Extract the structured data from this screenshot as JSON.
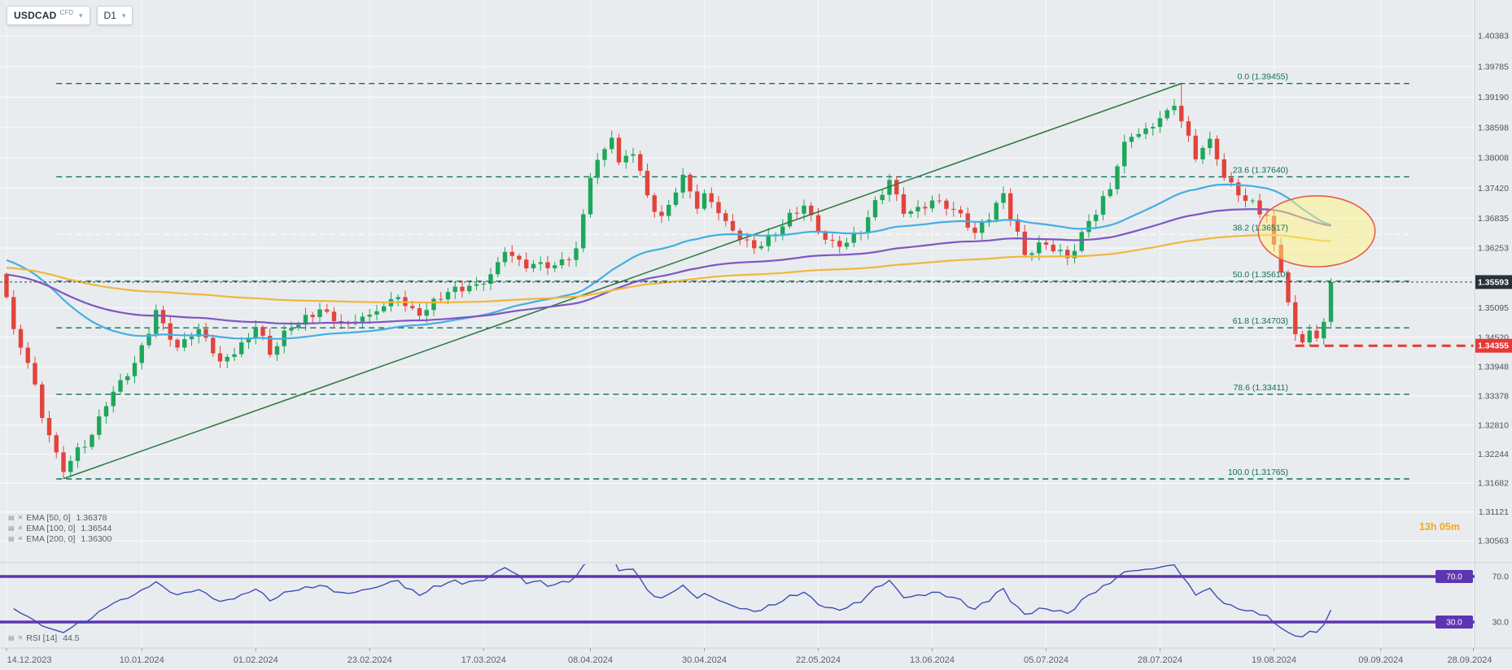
{
  "header": {
    "symbol": "USDCAD",
    "instrument_type": "CFD",
    "timeframe": "D1"
  },
  "countdown": "13h 05m",
  "indicator_legend": {
    "emas": [
      {
        "label": "EMA [50, 0]",
        "value": "1.36378",
        "period": 50,
        "color": "#45aee2"
      },
      {
        "label": "EMA [100, 0]",
        "value": "1.36544",
        "period": 100,
        "color": "#7e57c2"
      },
      {
        "label": "EMA [200, 0]",
        "value": "1.36300",
        "period": 200,
        "color": "#f0b73e"
      }
    ],
    "rsi": {
      "label": "RSI [14]",
      "value": "44.5",
      "period": 14
    }
  },
  "price_scale": {
    "current_price": {
      "label": "1.35593",
      "value": 1.35593,
      "bg": "#263238",
      "fg": "#ffffff"
    },
    "alert_price": {
      "label": "1.34355",
      "value": 1.34355,
      "bg": "#e53935",
      "fg": "#ffffff"
    }
  },
  "chart_data": {
    "type": "candlestick",
    "title": "",
    "xlabel": "",
    "ylabel": "",
    "ylim": [
      1.30563,
      1.40383
    ],
    "grid": true,
    "y_ticks": [
      1.40383,
      1.39785,
      1.3919,
      1.38598,
      1.38008,
      1.3742,
      1.36835,
      1.36253,
      1.35673,
      1.35095,
      1.3452,
      1.33948,
      1.33378,
      1.3281,
      1.32244,
      1.31682,
      1.31121,
      1.30563
    ],
    "x_ticks": [
      {
        "text": "14.12.2023",
        "index": 0
      },
      {
        "text": "10.01.2024",
        "index": 19
      },
      {
        "text": "01.02.2024",
        "index": 35
      },
      {
        "text": "23.02.2024",
        "index": 51
      },
      {
        "text": "17.03.2024",
        "index": 67
      },
      {
        "text": "08.04.2024",
        "index": 82
      },
      {
        "text": "30.04.2024",
        "index": 98
      },
      {
        "text": "22.05.2024",
        "index": 114
      },
      {
        "text": "13.06.2024",
        "index": 130
      },
      {
        "text": "05.07.2024",
        "index": 146
      },
      {
        "text": "28.07.2024",
        "index": 162
      },
      {
        "text": "19.08.2024",
        "index": 178
      },
      {
        "text": "09.09.2024",
        "index": 193
      },
      {
        "text": "28.09.2024",
        "index": 206
      }
    ],
    "candle_count": 187,
    "candle_colors": {
      "up": "#1da75a",
      "down": "#e2443b"
    },
    "close_anchors": [
      [
        0,
        1.353
      ],
      [
        1,
        1.3468
      ],
      [
        3,
        1.3402
      ],
      [
        5,
        1.3295
      ],
      [
        8,
        1.319
      ],
      [
        10,
        1.3238
      ],
      [
        12,
        1.3262
      ],
      [
        14,
        1.3318
      ],
      [
        18,
        1.3402
      ],
      [
        21,
        1.3505
      ],
      [
        24,
        1.3432
      ],
      [
        27,
        1.3468
      ],
      [
        30,
        1.3405
      ],
      [
        33,
        1.3442
      ],
      [
        35,
        1.3472
      ],
      [
        37,
        1.3418
      ],
      [
        40,
        1.347
      ],
      [
        44,
        1.3506
      ],
      [
        48,
        1.3478
      ],
      [
        51,
        1.3496
      ],
      [
        55,
        1.353
      ],
      [
        58,
        1.3494
      ],
      [
        62,
        1.354
      ],
      [
        67,
        1.3556
      ],
      [
        70,
        1.3618
      ],
      [
        73,
        1.3586
      ],
      [
        77,
        1.3592
      ],
      [
        80,
        1.3625
      ],
      [
        82,
        1.3762
      ],
      [
        84,
        1.3818
      ],
      [
        85,
        1.384
      ],
      [
        86,
        1.3792
      ],
      [
        88,
        1.3808
      ],
      [
        90,
        1.3728
      ],
      [
        92,
        1.3688
      ],
      [
        95,
        1.3768
      ],
      [
        97,
        1.3702
      ],
      [
        98,
        1.3732
      ],
      [
        101,
        1.3678
      ],
      [
        105,
        1.3625
      ],
      [
        108,
        1.3652
      ],
      [
        112,
        1.3708
      ],
      [
        114,
        1.3656
      ],
      [
        117,
        1.3628
      ],
      [
        120,
        1.3655
      ],
      [
        124,
        1.3758
      ],
      [
        126,
        1.3692
      ],
      [
        130,
        1.3718
      ],
      [
        133,
        1.37
      ],
      [
        136,
        1.3655
      ],
      [
        140,
        1.3732
      ],
      [
        143,
        1.3612
      ],
      [
        146,
        1.3632
      ],
      [
        149,
        1.3606
      ],
      [
        152,
        1.3678
      ],
      [
        155,
        1.374
      ],
      [
        157,
        1.3832
      ],
      [
        160,
        1.3858
      ],
      [
        162,
        1.3878
      ],
      [
        164,
        1.3902
      ],
      [
        165,
        1.3872
      ],
      [
        167,
        1.3798
      ],
      [
        169,
        1.3838
      ],
      [
        171,
        1.3762
      ],
      [
        173,
        1.3728
      ],
      [
        175,
        1.3718
      ],
      [
        177,
        1.3688
      ],
      [
        178,
        1.3632
      ],
      [
        179,
        1.3578
      ],
      [
        180,
        1.352
      ],
      [
        181,
        1.3458
      ],
      [
        182,
        1.3442
      ],
      [
        183,
        1.3465
      ],
      [
        184,
        1.345
      ],
      [
        185,
        1.3482
      ],
      [
        186,
        1.35593
      ]
    ],
    "extremes": {
      "low": {
        "index": 8,
        "price": 1.3177
      },
      "high": {
        "index": 165,
        "price": 1.39455
      },
      "aug_low": {
        "index": 182,
        "price": 1.34355
      }
    },
    "last_candle": {
      "index": 186,
      "open": 1.3482,
      "close": 1.35593
    },
    "fibonacci": {
      "color": "#0e6f5c",
      "white_level": "38.2",
      "from_index": 7,
      "to_index": 197,
      "label_anchor_index": 180,
      "levels": [
        {
          "pct": "0.0",
          "price": 1.39455,
          "label": "0.0 (1.39455)"
        },
        {
          "pct": "23.6",
          "price": 1.3764,
          "label": "23.6 (1.37640)"
        },
        {
          "pct": "38.2",
          "price": 1.36517,
          "label": "38.2 (1.36517)"
        },
        {
          "pct": "50.0",
          "price": 1.3561,
          "label": "50.0 (1.35610)"
        },
        {
          "pct": "61.8",
          "price": 1.34703,
          "label": "61.8 (1.34703)"
        },
        {
          "pct": "78.6",
          "price": 1.33411,
          "label": "78.6 (1.33411)"
        },
        {
          "pct": "100.0",
          "price": 1.31765,
          "label": "100.0 (1.31765)"
        }
      ]
    },
    "trendline": {
      "from": {
        "index": 8,
        "price": 1.3177
      },
      "to": {
        "index": 165,
        "price": 1.39455
      },
      "color": "#2f7d46"
    },
    "ellipse_annotation": {
      "center_index": 184,
      "center_price": 1.3658,
      "index_radius": 8.2,
      "price_radius": 0.0069,
      "fill": "#fff380",
      "fill_opacity": 0.5,
      "stroke": "#e65c4f"
    },
    "alert_line": {
      "price": 1.34355,
      "from_index": 181,
      "to_index": 206,
      "color": "#e53935"
    },
    "current_price_line": {
      "price": 1.35593,
      "color": "#37474f"
    },
    "emas": [
      {
        "period": 50,
        "color": "#45aee2",
        "seed": 1.3605
      },
      {
        "period": 100,
        "color": "#7e57c2",
        "seed": 1.3575
      },
      {
        "period": 200,
        "color": "#f0b73e",
        "seed": 1.3588
      }
    ],
    "rsi_pane": {
      "period": 14,
      "line_color": "#3d4db7",
      "band_color": "#5e35b1",
      "bands": [
        {
          "value": 70,
          "label": "70.0"
        },
        {
          "value": 30,
          "label": "30.0"
        }
      ],
      "last_value": 44.5
    }
  }
}
